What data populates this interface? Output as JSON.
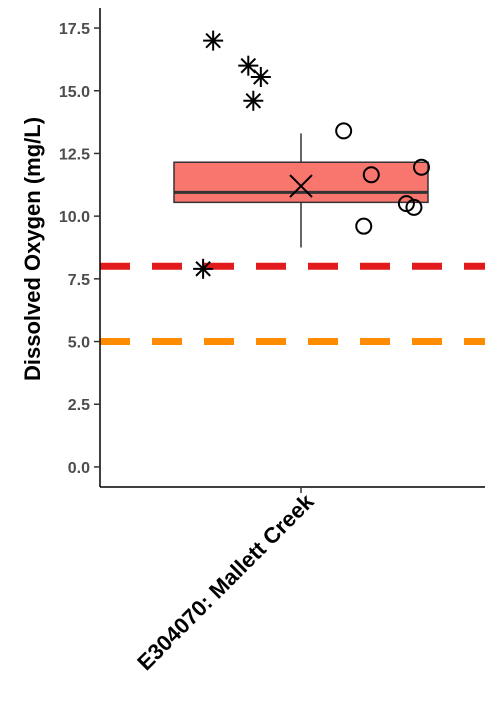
{
  "chart_data": {
    "type": "box",
    "title": "",
    "xlabel": "",
    "ylabel": "Dissolved Oxygen (mg/L)",
    "ylim": [
      -0.8,
      18.3
    ],
    "yticks": [
      0.0,
      2.5,
      5.0,
      7.5,
      10.0,
      12.5,
      15.0,
      17.5
    ],
    "ytick_labels": [
      "0.0",
      "2.5",
      "5.0",
      "7.5",
      "10.0",
      "12.5",
      "15.0",
      "17.5"
    ],
    "grid": false,
    "categories": [
      "E304070: Mallett Creek"
    ],
    "box": {
      "q1": 10.55,
      "median": 10.95,
      "q3": 12.15,
      "whisker_low": 8.75,
      "whisker_high": 13.3,
      "mean": 11.2,
      "fill": "#f8766d"
    },
    "star_points": [
      {
        "y": 17.0,
        "offset": -0.35
      },
      {
        "y": 16.0,
        "offset": -0.21
      },
      {
        "y": 15.55,
        "offset": -0.16
      },
      {
        "y": 14.6,
        "offset": -0.19
      },
      {
        "y": 7.9,
        "offset": -0.39
      }
    ],
    "circle_points": [
      {
        "y": 13.4,
        "offset": 0.17
      },
      {
        "y": 11.95,
        "offset": 0.48
      },
      {
        "y": 11.65,
        "offset": 0.28
      },
      {
        "y": 10.5,
        "offset": 0.42
      },
      {
        "y": 10.35,
        "offset": 0.45
      },
      {
        "y": 9.6,
        "offset": 0.25
      }
    ],
    "reference_lines": [
      {
        "y": 8.0,
        "color": "#e31a1c",
        "style": "dashed"
      },
      {
        "y": 5.0,
        "color": "#ff8c00",
        "style": "dashed"
      }
    ]
  }
}
